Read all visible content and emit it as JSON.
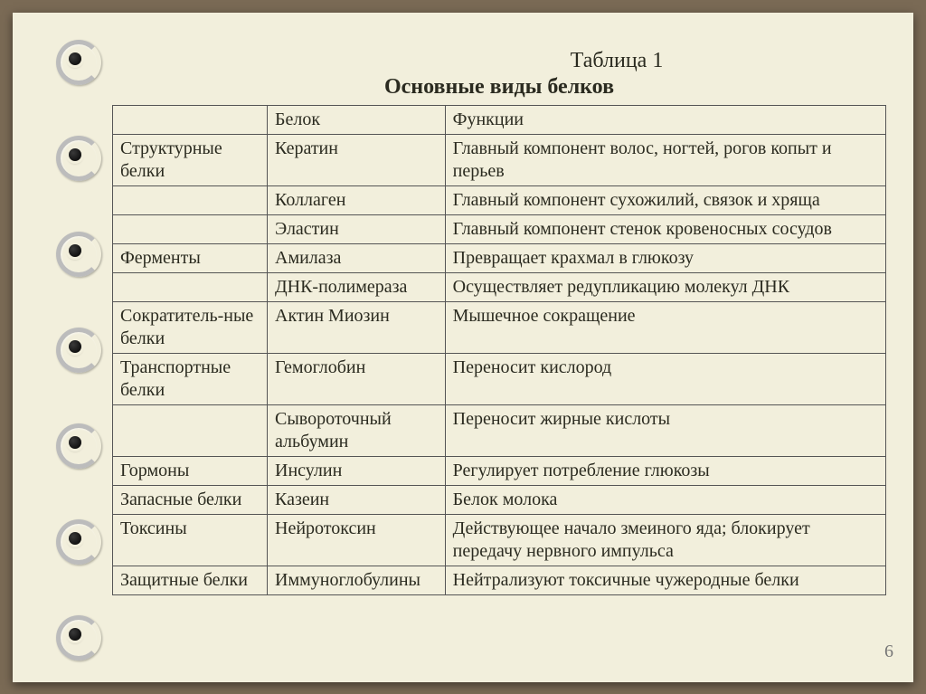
{
  "slide": {
    "table_label": "Таблица 1",
    "title": "Основные виды белков",
    "page_number": "6",
    "background_color": "#f2efdc",
    "border_outer": "#7a6a55",
    "cell_border_color": "#555555",
    "font_family": "Times New Roman",
    "body_fontsize": 20,
    "title_fontsize": 24
  },
  "table": {
    "columns": [
      "",
      "Белок",
      "Функции"
    ],
    "col_widths_pct": [
      20,
      23,
      57
    ],
    "rows": [
      {
        "c1": "Структурные белки",
        "c2": "Кератин",
        "c3": "Главный компонент волос, ногтей, рогов копыт и перьев"
      },
      {
        "c1": "",
        "c2": "Коллаген",
        "c3": "Главный компонент сухожилий, связок и хряща"
      },
      {
        "c1": "",
        "c2": "Эластин",
        "c3": "Главный компонент стенок кровеносных сосудов"
      },
      {
        "c1": "Ферменты",
        "c2": "Амилаза",
        "c3": "Превращает крахмал в глюкозу"
      },
      {
        "c1": "",
        "c2": "ДНК-полимераза",
        "c3": "Осуществляет редупликацию молекул ДНК"
      },
      {
        "c1": "Сократитель-ные белки",
        "c2": "Актин Миозин",
        "c3": "Мышечное сокращение"
      },
      {
        "c1": "Транспортные белки",
        "c2": "Гемоглобин",
        "c3": "Переносит кислород"
      },
      {
        "c1": "",
        "c2": "Сывороточный альбумин",
        "c3": "Переносит жирные кислоты"
      },
      {
        "c1": "Гормоны",
        "c2": "Инсулин",
        "c3": "Регулирует потребление глюкозы"
      },
      {
        "c1": "Запасные белки",
        "c2": "Казеин",
        "c3": "Белок молока"
      },
      {
        "c1": "Токсины",
        "c2": "Нейротоксин",
        "c3": "Действующее начало змеиного яда; блокирует передачу нервного импульса"
      },
      {
        "c1": "Защитные белки",
        "c2": "Иммуноглобулины",
        "c3": "Нейтрализуют токсичные чужеродные белки"
      }
    ]
  }
}
